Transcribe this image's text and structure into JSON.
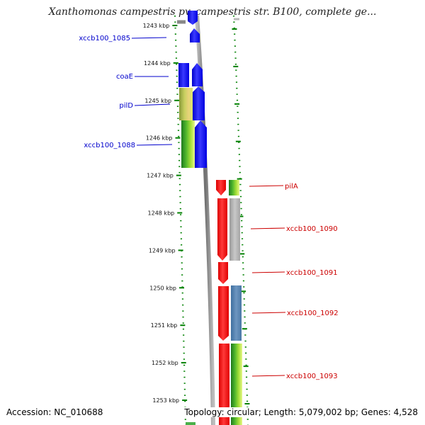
{
  "title": "Xanthomonas campestris pv. campestris str. B100, complete ge...",
  "footer": {
    "accession": "Accession: NC_010688",
    "summary": "Topology: circular; Length: 5,079,002 bp; Genes: 4,528"
  },
  "scale": {
    "ticks": [
      {
        "kbp": 1243,
        "label": "1243 kbp"
      },
      {
        "kbp": 1244,
        "label": "1244 kbp"
      },
      {
        "kbp": 1245,
        "label": "1245 kbp"
      },
      {
        "kbp": 1246,
        "label": "1246 kbp"
      },
      {
        "kbp": 1247,
        "label": "1247 kbp"
      },
      {
        "kbp": 1248,
        "label": "1248 kbp"
      },
      {
        "kbp": 1249,
        "label": "1249 kbp"
      },
      {
        "kbp": 1250,
        "label": "1250 kbp"
      },
      {
        "kbp": 1251,
        "label": "1251 kbp"
      },
      {
        "kbp": 1252,
        "label": "1252 kbp"
      },
      {
        "kbp": 1253,
        "label": "1253 kbp"
      }
    ]
  },
  "colors": {
    "forward_strand": "#0000ff",
    "reverse_strand": "#ff0000",
    "backbone": "#888888",
    "scale_ticks": "#008000"
  },
  "forward_labels": [
    {
      "text": "xccb100_1085"
    },
    {
      "text": "coaE"
    },
    {
      "text": "pilD"
    },
    {
      "text": "xccb100_1088"
    }
  ],
  "reverse_labels": [
    {
      "text": "pilA"
    },
    {
      "text": "xccb100_1090"
    },
    {
      "text": "xccb100_1091"
    },
    {
      "text": "xccb100_1092"
    },
    {
      "text": "xccb100_1093"
    }
  ]
}
